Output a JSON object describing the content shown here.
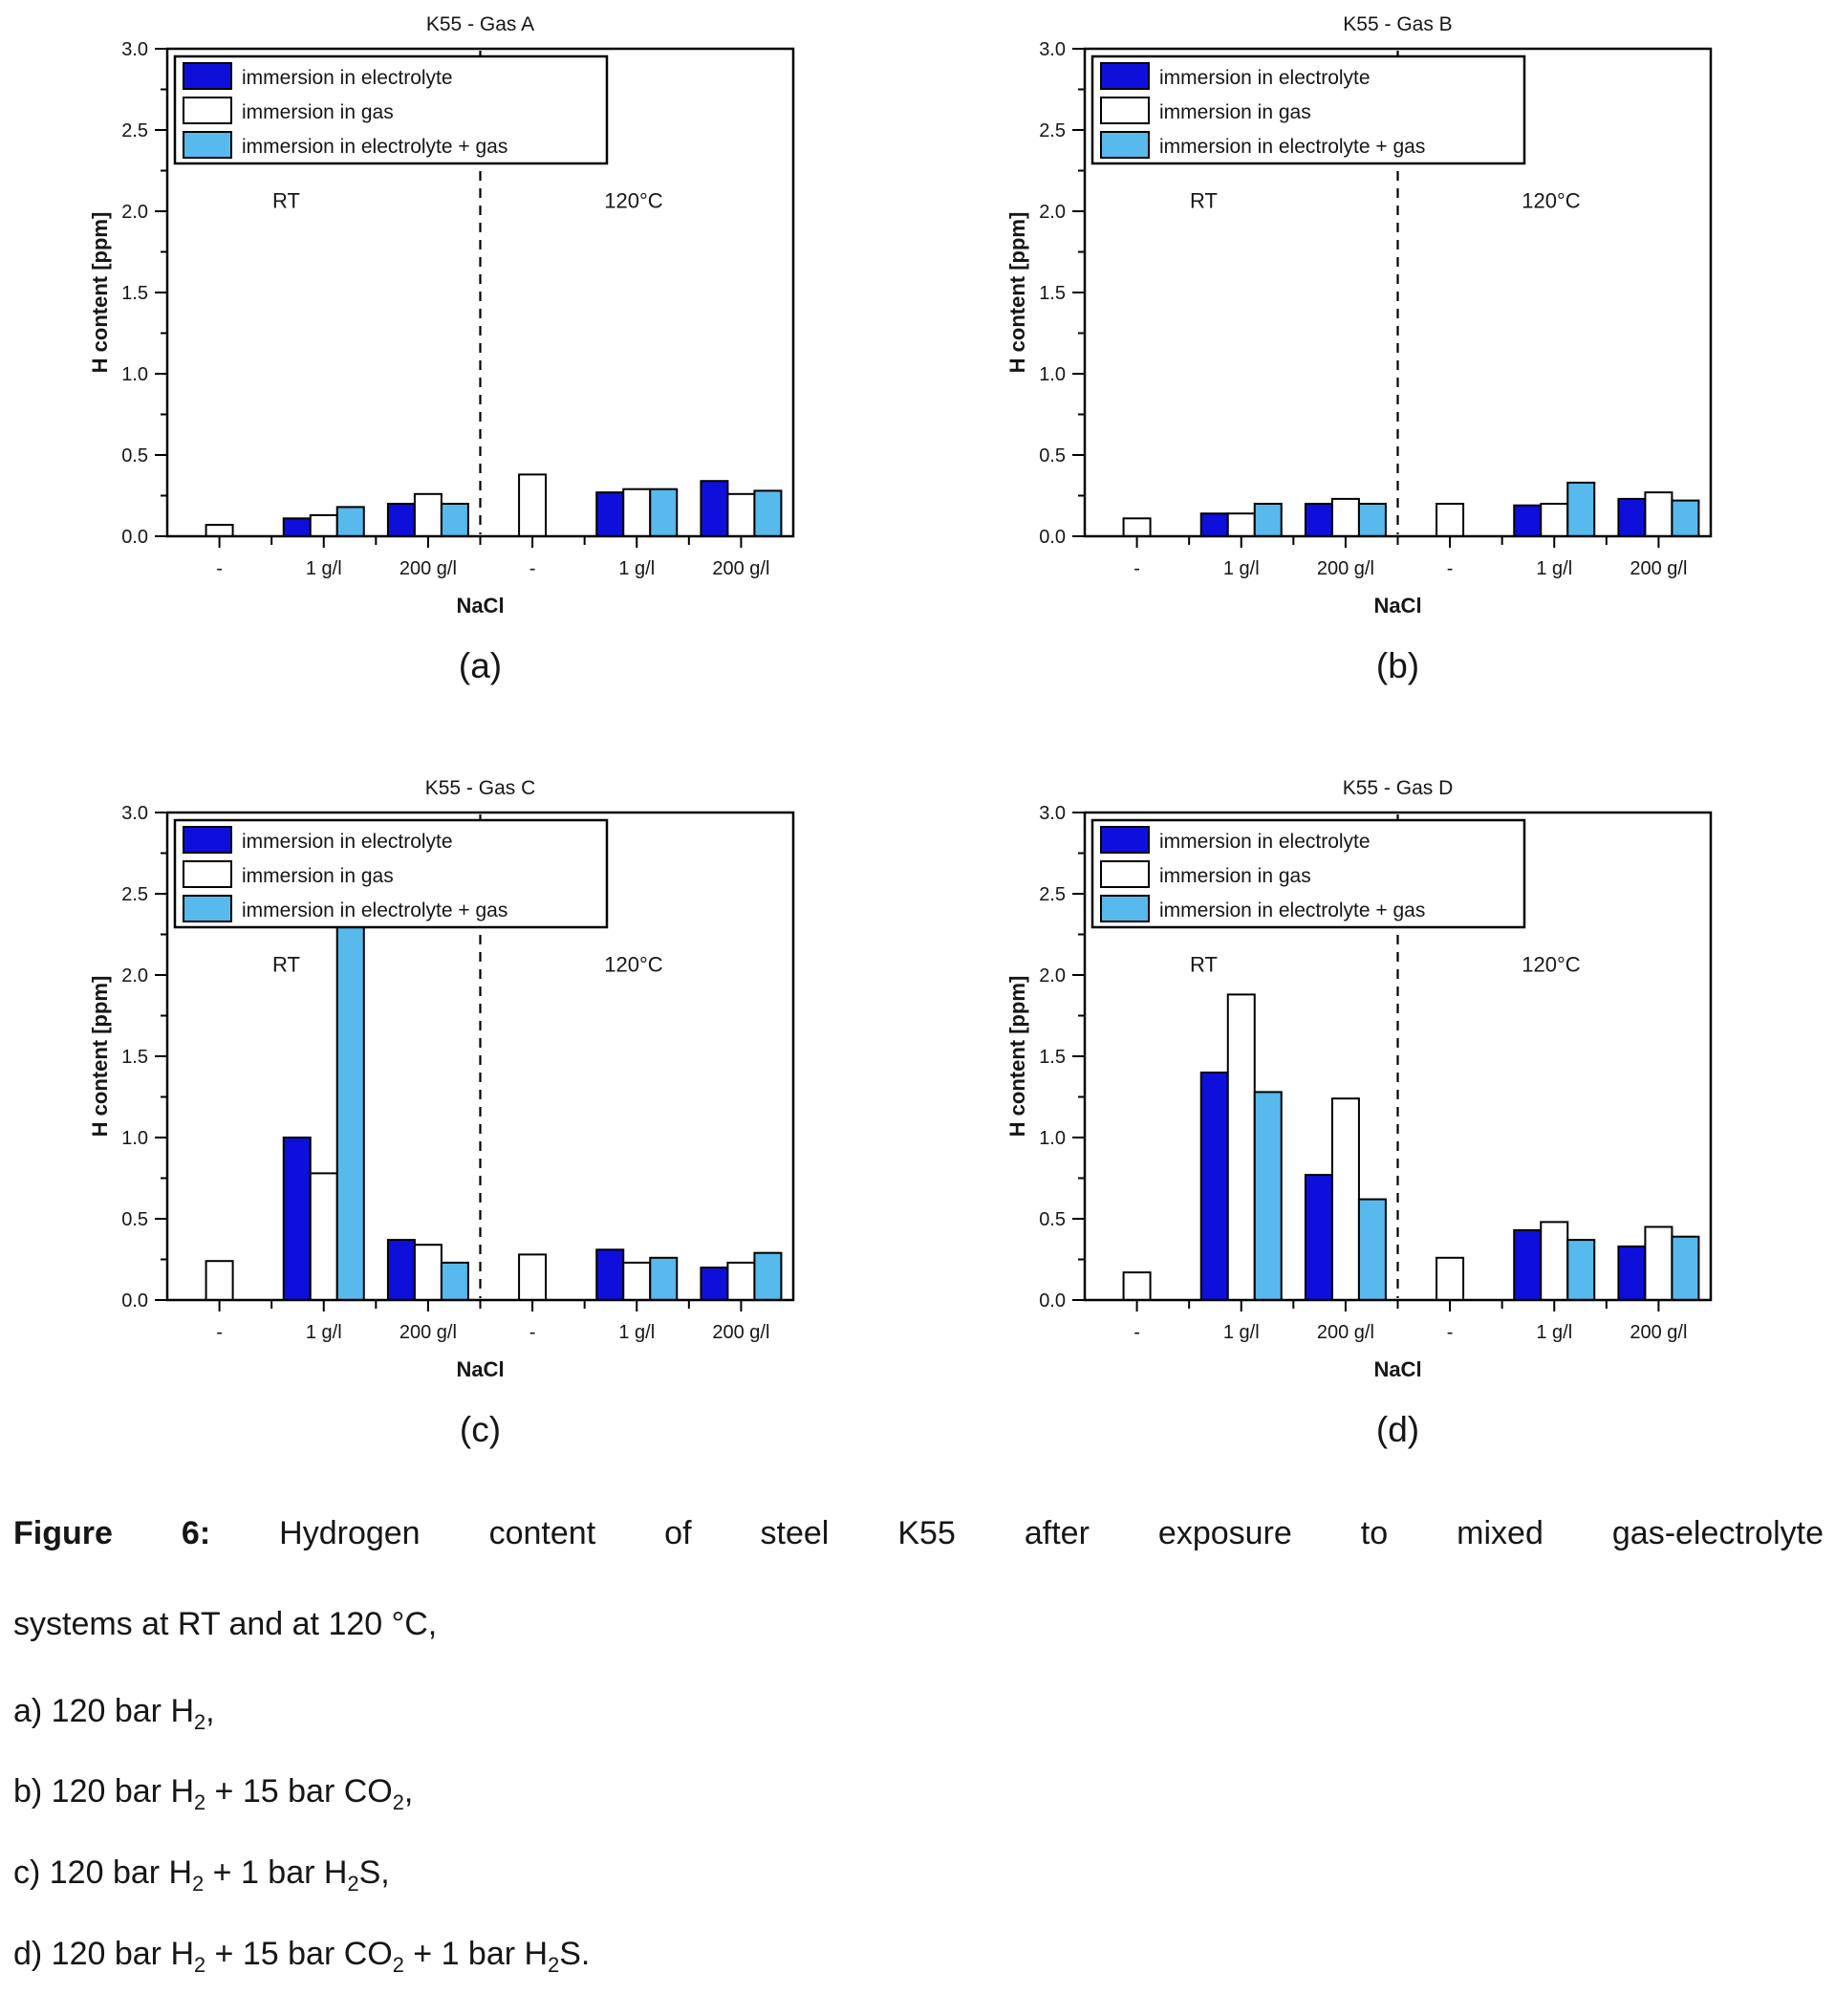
{
  "colors": {
    "electrolyte": "#0f0fdc",
    "gas": "#ffffff",
    "electrolyte_gas": "#57b9ec",
    "bar_border": "#000000"
  },
  "legend": {
    "entries": [
      "immersion in electrolyte",
      "immersion in gas",
      "immersion in electrolyte + gas"
    ]
  },
  "axis": {
    "ylabel": "H content [ppm]",
    "xlabel": "NaCl",
    "ylim": [
      0,
      3.0
    ],
    "ytick_step": 0.5,
    "yminor_step": 0.25,
    "categories": [
      "-",
      "1 g/l",
      "200 g/l",
      "-",
      "1 g/l",
      "200 g/l"
    ],
    "region_labels": [
      "RT",
      "120°C"
    ]
  },
  "chart_data": [
    {
      "type": "bar",
      "title": "K55 - Gas A",
      "panel_label": "(a)",
      "categories": [
        "-",
        "1 g/l",
        "200 g/l",
        "-",
        "1 g/l",
        "200 g/l"
      ],
      "series": [
        {
          "name": "immersion in electrolyte",
          "values": [
            null,
            0.11,
            0.2,
            null,
            0.27,
            0.34
          ]
        },
        {
          "name": "immersion in gas",
          "values": [
            0.07,
            0.13,
            0.26,
            0.38,
            0.29,
            0.26
          ]
        },
        {
          "name": "immersion in electrolyte + gas",
          "values": [
            null,
            0.18,
            0.2,
            null,
            0.29,
            0.28
          ]
        }
      ]
    },
    {
      "type": "bar",
      "title": "K55 - Gas B",
      "panel_label": "(b)",
      "categories": [
        "-",
        "1 g/l",
        "200 g/l",
        "-",
        "1 g/l",
        "200 g/l"
      ],
      "series": [
        {
          "name": "immersion in electrolyte",
          "values": [
            null,
            0.14,
            0.2,
            null,
            0.19,
            0.23
          ]
        },
        {
          "name": "immersion in gas",
          "values": [
            0.11,
            0.14,
            0.23,
            0.2,
            0.2,
            0.27
          ]
        },
        {
          "name": "immersion in electrolyte + gas",
          "values": [
            null,
            0.2,
            0.2,
            null,
            0.33,
            0.22
          ]
        }
      ]
    },
    {
      "type": "bar",
      "title": "K55 - Gas C",
      "panel_label": "(c)",
      "categories": [
        "-",
        "1 g/l",
        "200 g/l",
        "-",
        "1 g/l",
        "200 g/l"
      ],
      "series": [
        {
          "name": "immersion in electrolyte",
          "values": [
            null,
            1.0,
            0.37,
            null,
            0.31,
            0.2
          ]
        },
        {
          "name": "immersion in gas",
          "values": [
            0.24,
            0.78,
            0.34,
            0.28,
            0.23,
            0.23
          ]
        },
        {
          "name": "immersion in electrolyte + gas",
          "values": [
            null,
            2.32,
            0.23,
            null,
            0.26,
            0.29
          ]
        }
      ]
    },
    {
      "type": "bar",
      "title": "K55 - Gas D",
      "panel_label": "(d)",
      "categories": [
        "-",
        "1 g/l",
        "200 g/l",
        "-",
        "1 g/l",
        "200 g/l"
      ],
      "series": [
        {
          "name": "immersion in electrolyte",
          "values": [
            null,
            1.4,
            0.77,
            null,
            0.43,
            0.33
          ]
        },
        {
          "name": "immersion in gas",
          "values": [
            0.17,
            1.88,
            1.24,
            0.26,
            0.48,
            0.45
          ]
        },
        {
          "name": "immersion in electrolyte + gas",
          "values": [
            null,
            1.28,
            0.62,
            null,
            0.37,
            0.39
          ]
        }
      ]
    }
  ],
  "caption": {
    "figure_label": "Figure 6:",
    "line1_rest": "Hydrogen content of steel K55 after exposure to mixed gas-electrolyte",
    "line2": "systems at RT and at 120 °C,",
    "items": [
      {
        "segments": [
          "a) 120 bar H",
          {
            "sub": "2"
          },
          ","
        ]
      },
      {
        "segments": [
          "b) 120 bar H",
          {
            "sub": "2"
          },
          " + 15 bar CO",
          {
            "sub": "2"
          },
          ","
        ]
      },
      {
        "segments": [
          "c) 120 bar H",
          {
            "sub": "2"
          },
          " + 1 bar H",
          {
            "sub": "2"
          },
          "S,"
        ]
      },
      {
        "segments": [
          "d) 120 bar H",
          {
            "sub": "2"
          },
          " + 15 bar CO",
          {
            "sub": "2"
          },
          " + 1 bar H",
          {
            "sub": "2"
          },
          "S."
        ]
      }
    ]
  }
}
